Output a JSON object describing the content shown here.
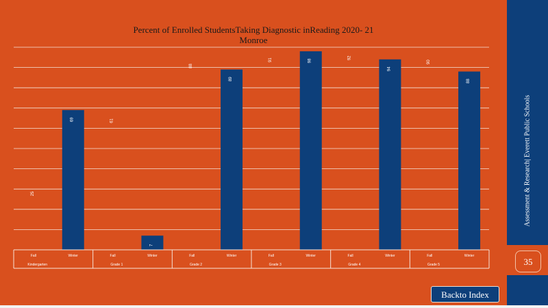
{
  "chart_data": {
    "type": "bar",
    "title": "Percent of Enrolled StudentsTaking Diagnostic inReading 2020- 21",
    "subtitle": "Monroe",
    "groups": [
      {
        "name": "Kindergarten",
        "bars": [
          {
            "label": "Fall",
            "value": 25
          },
          {
            "label": "Winter",
            "value": 69
          }
        ]
      },
      {
        "name": "Grade 1",
        "bars": [
          {
            "label": "Fall",
            "value": 61
          },
          {
            "label": "Winter",
            "value": 7
          }
        ]
      },
      {
        "name": "Grade 2",
        "bars": [
          {
            "label": "Fall",
            "value": 88
          },
          {
            "label": "Winter",
            "value": 89
          }
        ]
      },
      {
        "name": "Grade 3",
        "bars": [
          {
            "label": "Fall",
            "value": 91
          },
          {
            "label": "Winter",
            "value": 98
          }
        ]
      },
      {
        "name": "Grade 4",
        "bars": [
          {
            "label": "Fall",
            "value": 92
          },
          {
            "label": "Winter",
            "value": 94
          }
        ]
      },
      {
        "name": "Grade 5",
        "bars": [
          {
            "label": "Fall",
            "value": 90
          },
          {
            "label": "Winter",
            "value": 88
          }
        ]
      }
    ],
    "data_labels": [
      [
        "25",
        "69"
      ],
      [
        "61",
        "7"
      ],
      [
        "88",
        "89"
      ],
      [
        "91",
        "98"
      ],
      [
        "92",
        "94"
      ],
      [
        "90",
        "88"
      ]
    ],
    "ylim": [
      0,
      100
    ],
    "grid": true,
    "colors": {
      "fall": "#d9501e",
      "winter": "#0d3f7a",
      "grid": "#f6e3d8",
      "label_light": "#ffffff"
    }
  },
  "sidebar": {
    "text": "Assessment & Research| Everett Public Schools"
  },
  "page_number": "35",
  "nav": {
    "back_label": "Backto Index"
  },
  "colors": {
    "background": "#d9501e",
    "navy": "#0d3f7a"
  }
}
